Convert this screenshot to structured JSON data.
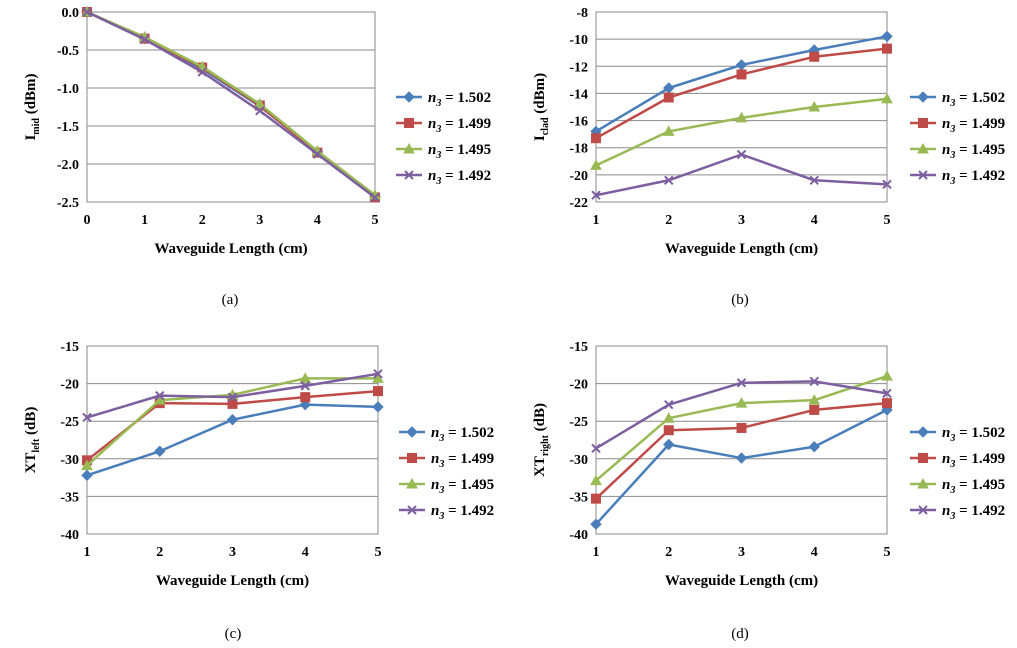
{
  "legend_labels": [
    "n3 = 1.502",
    "n3 = 1.499",
    "n3 = 1.495",
    "n3 = 1.492"
  ],
  "chart_data": [
    {
      "type": "line",
      "caption": "(a)",
      "ylabel_main": "I",
      "ylabel_sub": "mid",
      "ylabel_unit": " (dBm)",
      "xlabel": "Waveguide Length (cm)",
      "x": [
        0,
        1,
        2,
        3,
        4,
        5
      ],
      "xlim": [
        0,
        5
      ],
      "ylim": [
        -2.5,
        0
      ],
      "yticks": [
        0,
        -0.5,
        -1,
        -1.5,
        -2,
        -2.5
      ],
      "ytick_labels": [
        "0.0",
        "-0.5",
        "-1.0",
        "-1.5",
        "-2.0",
        "-2.5"
      ],
      "xticks": [
        0,
        1,
        2,
        3,
        4,
        5
      ],
      "series": [
        {
          "name": "n3 = 1.502",
          "color": "#4a7ebb",
          "marker": "diamond",
          "values": [
            0,
            -0.35,
            -0.75,
            -1.24,
            -1.84,
            -2.43
          ]
        },
        {
          "name": "n3 = 1.499",
          "color": "#be4b48",
          "marker": "square",
          "values": [
            0,
            -0.35,
            -0.73,
            -1.23,
            -1.85,
            -2.44
          ]
        },
        {
          "name": "n3 = 1.495",
          "color": "#98b954",
          "marker": "triangle",
          "values": [
            0,
            -0.33,
            -0.72,
            -1.21,
            -1.83,
            -2.41
          ]
        },
        {
          "name": "n3 = 1.492",
          "color": "#7d5fa0",
          "marker": "x",
          "values": [
            0,
            -0.36,
            -0.79,
            -1.3,
            -1.87,
            -2.44
          ]
        }
      ]
    },
    {
      "type": "line",
      "caption": "(b)",
      "ylabel_main": "I",
      "ylabel_sub": "clad",
      "ylabel_unit": " (dBm)",
      "xlabel": "Waveguide Length (cm)",
      "x": [
        1,
        2,
        3,
        4,
        5
      ],
      "xlim": [
        1,
        5
      ],
      "ylim": [
        -22,
        -8
      ],
      "yticks": [
        -8,
        -10,
        -12,
        -14,
        -16,
        -18,
        -20,
        -22
      ],
      "ytick_labels": [
        "-8",
        "-10",
        "-12",
        "-14",
        "-16",
        "-18",
        "-20",
        "-22"
      ],
      "xticks": [
        1,
        2,
        3,
        4,
        5
      ],
      "series": [
        {
          "name": "n3 = 1.502",
          "color": "#4a7ebb",
          "marker": "diamond",
          "values": [
            -16.8,
            -13.6,
            -11.9,
            -10.8,
            -9.8
          ]
        },
        {
          "name": "n3 = 1.499",
          "color": "#be4b48",
          "marker": "square",
          "values": [
            -17.3,
            -14.3,
            -12.6,
            -11.3,
            -10.7
          ]
        },
        {
          "name": "n3 = 1.495",
          "color": "#98b954",
          "marker": "triangle",
          "values": [
            -19.3,
            -16.8,
            -15.8,
            -15.0,
            -14.4
          ]
        },
        {
          "name": "n3 = 1.492",
          "color": "#7d5fa0",
          "marker": "x",
          "values": [
            -21.5,
            -20.4,
            -18.5,
            -20.4,
            -20.7
          ]
        }
      ]
    },
    {
      "type": "line",
      "caption": "(c)",
      "ylabel_main": "XT",
      "ylabel_sub": "left",
      "ylabel_unit": " (dB)",
      "xlabel": "Waveguide Length (cm)",
      "x": [
        1,
        2,
        3,
        4,
        5
      ],
      "xlim": [
        1,
        5
      ],
      "ylim": [
        -40,
        -15
      ],
      "yticks": [
        -15,
        -20,
        -25,
        -30,
        -35,
        -40
      ],
      "ytick_labels": [
        "-15",
        "-20",
        "-25",
        "-30",
        "-35",
        "-40"
      ],
      "xticks": [
        1,
        2,
        3,
        4,
        5
      ],
      "series": [
        {
          "name": "n3 = 1.502",
          "color": "#4a7ebb",
          "marker": "diamond",
          "values": [
            -32.2,
            -29.0,
            -24.8,
            -22.8,
            -23.1
          ]
        },
        {
          "name": "n3 = 1.499",
          "color": "#be4b48",
          "marker": "square",
          "values": [
            -30.2,
            -22.6,
            -22.7,
            -21.8,
            -21.0
          ]
        },
        {
          "name": "n3 = 1.495",
          "color": "#98b954",
          "marker": "triangle",
          "values": [
            -30.9,
            -22.2,
            -21.5,
            -19.3,
            -19.3
          ]
        },
        {
          "name": "n3 = 1.492",
          "color": "#7d5fa0",
          "marker": "x",
          "values": [
            -24.5,
            -21.6,
            -21.8,
            -20.3,
            -18.7
          ]
        }
      ]
    },
    {
      "type": "line",
      "caption": "(d)",
      "ylabel_main": "XT",
      "ylabel_sub": "right",
      "ylabel_unit": " (dB)",
      "xlabel": "Waveguide Length (cm)",
      "x": [
        1,
        2,
        3,
        4,
        5
      ],
      "xlim": [
        1,
        5
      ],
      "ylim": [
        -40,
        -15
      ],
      "yticks": [
        -15,
        -20,
        -25,
        -30,
        -35,
        -40
      ],
      "ytick_labels": [
        "-15",
        "-20",
        "-25",
        "-30",
        "-35",
        "-40"
      ],
      "xticks": [
        1,
        2,
        3,
        4,
        5
      ],
      "series": [
        {
          "name": "n3 = 1.502",
          "color": "#4a7ebb",
          "marker": "diamond",
          "values": [
            -38.7,
            -28.1,
            -29.9,
            -28.4,
            -23.5
          ]
        },
        {
          "name": "n3 = 1.499",
          "color": "#be4b48",
          "marker": "square",
          "values": [
            -35.3,
            -26.2,
            -25.9,
            -23.5,
            -22.6
          ]
        },
        {
          "name": "n3 = 1.495",
          "color": "#98b954",
          "marker": "triangle",
          "values": [
            -32.9,
            -24.6,
            -22.6,
            -22.2,
            -19.0
          ]
        },
        {
          "name": "n3 = 1.492",
          "color": "#7d5fa0",
          "marker": "x",
          "values": [
            -28.6,
            -22.8,
            -19.9,
            -19.7,
            -21.3
          ]
        }
      ]
    }
  ]
}
